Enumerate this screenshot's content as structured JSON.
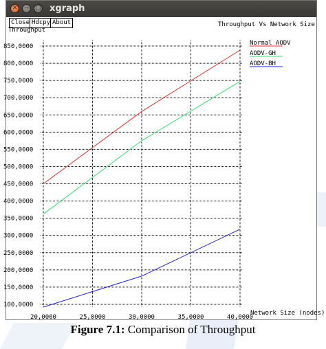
{
  "window": {
    "title": "xgraph"
  },
  "titlebar_buttons": [
    {
      "name": "close-window",
      "glyph": "✕"
    },
    {
      "name": "minimize-window",
      "glyph": "−"
    },
    {
      "name": "maximize-window",
      "glyph": "□"
    }
  ],
  "toolbar": {
    "close_label": "Close",
    "hdcpy_label": "Hdcpy",
    "about_label": "About"
  },
  "graph_title": "Throughput Vs Network Size",
  "caption": {
    "label": "Figure 7.1:",
    "text": " Comparison of Throughput"
  },
  "chart_data": {
    "type": "line",
    "title": "Throughput Vs Network Size",
    "xlabel": "Network Size (nodes)",
    "ylabel": "Throughput",
    "xlim": [
      20000,
      40000
    ],
    "ylim": [
      100,
      850
    ],
    "grid": true,
    "legend_position": "top-right",
    "x_ticks": [
      "20,0000",
      "25,0000",
      "30,0000",
      "35,0000",
      "40,0000"
    ],
    "y_ticks": [
      "850,0000",
      "800,0000",
      "750,0000",
      "700,0000",
      "650,0000",
      "600,0000",
      "550,0000",
      "500,0000",
      "450,0000",
      "400,0000",
      "350,0000",
      "300,0000",
      "250,0000",
      "200,0000",
      "150,0000",
      "100,0000"
    ],
    "y_tick_values": [
      850,
      800,
      750,
      700,
      650,
      600,
      550,
      500,
      450,
      400,
      350,
      300,
      250,
      200,
      150,
      100
    ],
    "x_tick_values": [
      20000,
      25000,
      30000,
      35000,
      40000
    ],
    "series": [
      {
        "name": "Normal AODV",
        "color": "#e03030",
        "x": [
          20000,
          30000,
          40000
        ],
        "y": [
          450,
          660,
          838
        ]
      },
      {
        "name": "AODV-GH",
        "color": "#30e070",
        "x": [
          20000,
          30000,
          40000
        ],
        "y": [
          362,
          575,
          747
        ]
      },
      {
        "name": "AODV-BH",
        "color": "#2020d0",
        "x": [
          20000,
          30000,
          40000
        ],
        "y": [
          92,
          182,
          318
        ]
      }
    ]
  }
}
